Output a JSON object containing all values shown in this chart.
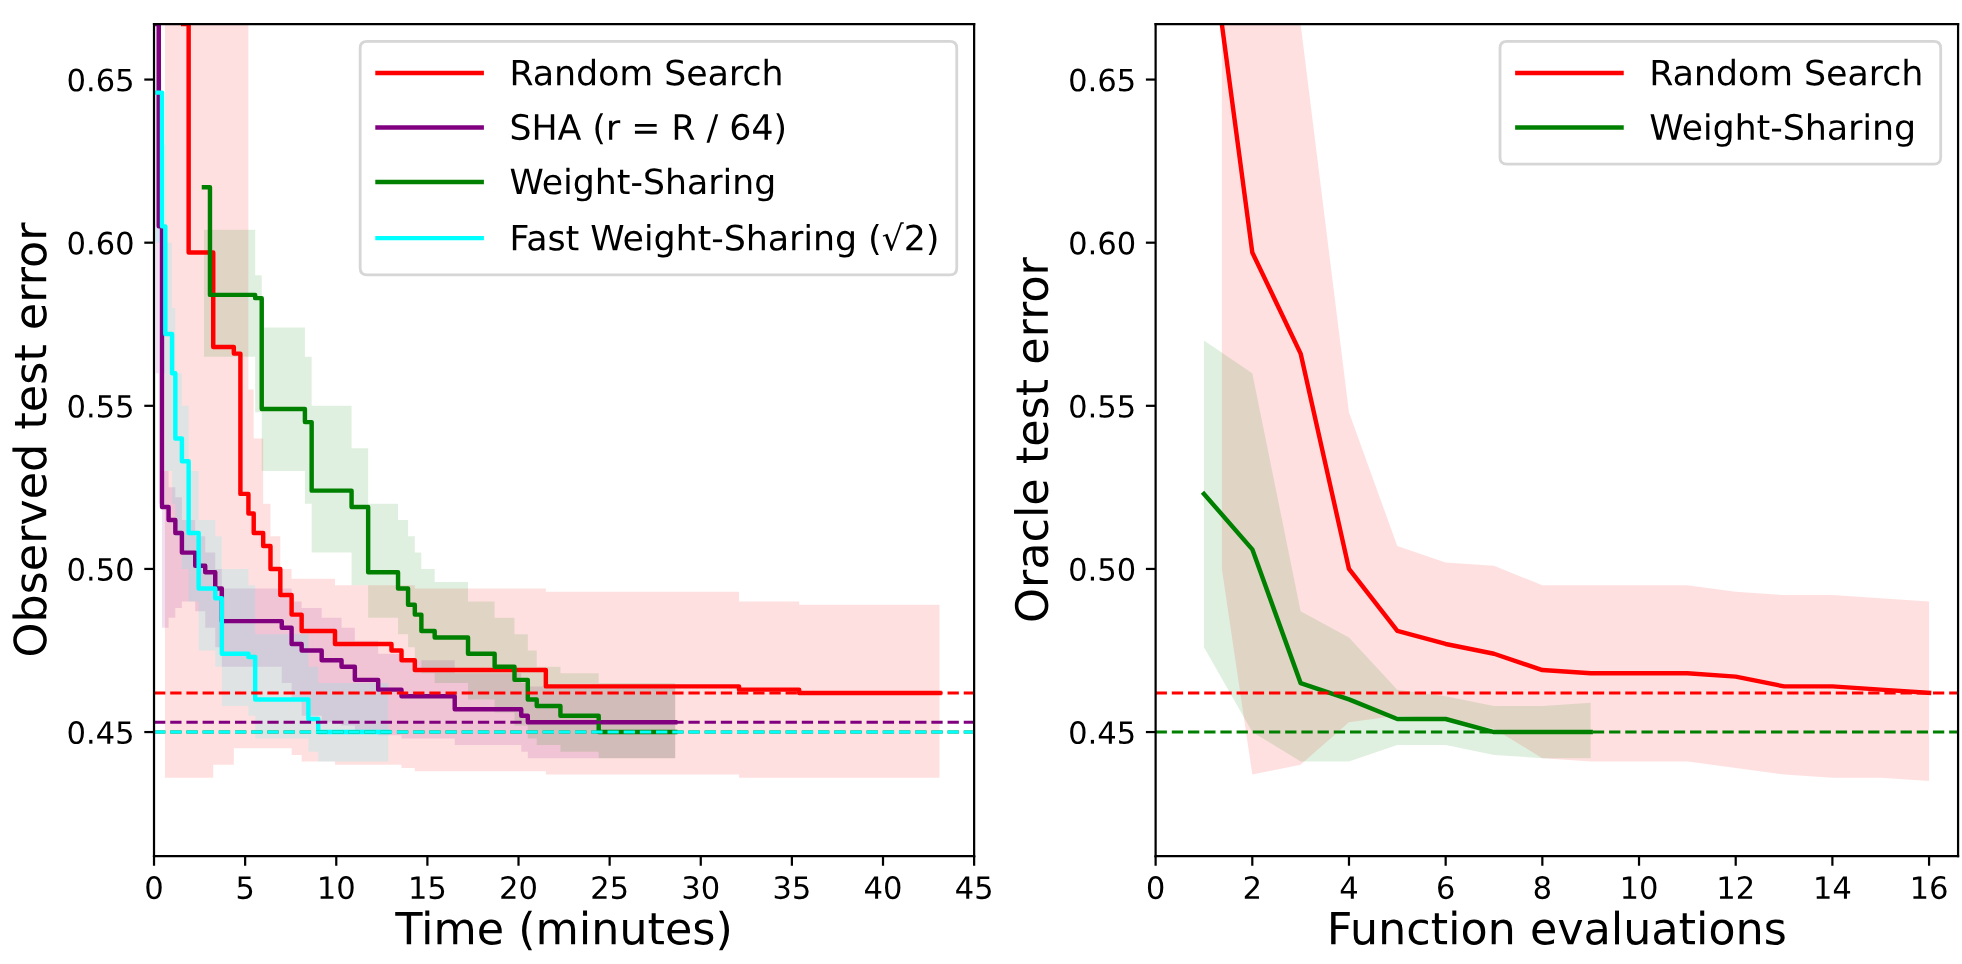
{
  "chart_data": [
    {
      "type": "step",
      "xlabel": "Time (minutes)",
      "ylabel": "Observed test error",
      "xlim": [
        0,
        45
      ],
      "xticks": [
        0,
        5,
        10,
        15,
        20,
        25,
        30,
        35,
        40,
        45
      ],
      "ylim": [
        0.412,
        0.667
      ],
      "yticks": [
        {
          "value": 0.45,
          "label": "0.45"
        },
        {
          "value": 0.5,
          "label": "0.50"
        },
        {
          "value": 0.55,
          "label": "0.55"
        },
        {
          "value": 0.6,
          "label": "0.60"
        },
        {
          "value": 0.65,
          "label": "0.65"
        }
      ],
      "grid": false,
      "legend": "top right",
      "line_style": "solid",
      "series": [
        {
          "name": "Random Search",
          "color": "#ff0000",
          "x": [
            0.6,
            1.6,
            1.9,
            3.25,
            4.38,
            4.74,
            5.18,
            5.47,
            5.99,
            6.39,
            6.93,
            7.55,
            8.1,
            9.93,
            13.03,
            13.58,
            14.31,
            21.5,
            32.1,
            35.4,
            43.1
          ],
          "values": [
            null,
            0.667,
            0.597,
            0.568,
            0.566,
            0.523,
            0.517,
            0.511,
            0.507,
            0.5,
            0.492,
            0.486,
            0.481,
            0.477,
            0.475,
            0.472,
            0.469,
            0.464,
            0.463,
            0.462,
            0.462
          ],
          "upper": [
            0.667,
            0.667,
            0.667,
            0.667,
            0.667,
            0.667,
            0.555,
            0.54,
            0.52,
            0.51,
            0.5,
            0.497,
            0.497,
            0.495,
            0.495,
            0.495,
            0.494,
            0.493,
            0.49,
            0.489,
            0.489
          ],
          "lower": [
            0.436,
            0.436,
            0.436,
            0.44,
            0.445,
            0.445,
            0.445,
            0.445,
            0.445,
            0.445,
            0.445,
            0.443,
            0.441,
            0.44,
            0.44,
            0.439,
            0.438,
            0.437,
            0.436,
            0.436,
            0.436
          ]
        },
        {
          "name": "SHA (r = R / 64)",
          "color": "#800080",
          "x": [
            0.1,
            0.26,
            0.44,
            0.8,
            1.17,
            1.53,
            2.26,
            2.81,
            3.36,
            3.72,
            7.01,
            7.55,
            8.1,
            9.2,
            10.29,
            11.02,
            12.3,
            13.58,
            16.5,
            20.15,
            20.51,
            28.6
          ],
          "values": [
            0.667,
            0.605,
            0.519,
            0.515,
            0.511,
            0.505,
            0.501,
            0.499,
            0.494,
            0.484,
            0.482,
            0.477,
            0.475,
            0.472,
            0.47,
            0.466,
            0.463,
            0.461,
            0.457,
            0.455,
            0.453,
            0.453
          ],
          "upper": [
            0.667,
            0.62,
            0.53,
            0.525,
            0.522,
            0.515,
            0.51,
            0.505,
            0.5,
            0.494,
            0.494,
            0.49,
            0.488,
            0.485,
            0.482,
            0.478,
            0.474,
            0.472,
            0.468,
            0.465,
            0.464,
            0.464
          ],
          "lower": [
            0.56,
            0.52,
            0.482,
            0.485,
            0.488,
            0.49,
            0.487,
            0.482,
            0.476,
            0.47,
            0.465,
            0.46,
            0.455,
            0.453,
            0.452,
            0.45,
            0.449,
            0.448,
            0.446,
            0.444,
            0.442,
            0.442
          ]
        },
        {
          "name": "Weight-Sharing",
          "color": "#008000",
          "x": [
            2.74,
            3.07,
            5.55,
            5.91,
            8.28,
            8.65,
            10.84,
            11.75,
            13.39,
            13.94,
            14.31,
            14.67,
            15.4,
            17.23,
            18.69,
            19.78,
            20.51,
            21.0,
            22.3,
            24.4,
            28.6
          ],
          "values": [
            0.617,
            0.584,
            0.583,
            0.549,
            0.545,
            0.524,
            0.519,
            0.499,
            0.494,
            0.489,
            0.486,
            0.481,
            0.479,
            0.474,
            0.47,
            0.466,
            0.46,
            0.458,
            0.455,
            0.45,
            0.45
          ],
          "upper": [
            0.604,
            0.604,
            0.59,
            0.574,
            0.565,
            0.55,
            0.537,
            0.52,
            0.515,
            0.51,
            0.505,
            0.5,
            0.496,
            0.49,
            0.485,
            0.48,
            0.475,
            0.47,
            0.468,
            0.465,
            0.465
          ],
          "lower": [
            0.565,
            0.565,
            0.548,
            0.53,
            0.52,
            0.505,
            0.495,
            0.485,
            0.48,
            0.476,
            0.472,
            0.468,
            0.465,
            0.46,
            0.456,
            0.452,
            0.448,
            0.446,
            0.444,
            0.442,
            0.442
          ]
        },
        {
          "name": "Fast Weight-Sharing (√2)",
          "color": "#00ffff",
          "x": [
            0.07,
            0.44,
            0.62,
            0.99,
            1.17,
            1.53,
            1.9,
            2.45,
            3.36,
            3.72,
            5.18,
            5.55,
            8.47,
            9.01,
            12.85
          ],
          "values": [
            0.646,
            0.605,
            0.572,
            0.56,
            0.54,
            0.533,
            0.511,
            0.494,
            0.491,
            0.474,
            0.473,
            0.46,
            0.454,
            0.45,
            0.45
          ],
          "upper": [
            0.65,
            0.63,
            0.6,
            0.58,
            0.56,
            0.55,
            0.53,
            0.515,
            0.51,
            0.5,
            0.495,
            0.48,
            0.47,
            0.465,
            0.462
          ],
          "lower": [
            0.6,
            0.56,
            0.53,
            0.52,
            0.51,
            0.5,
            0.49,
            0.475,
            0.47,
            0.458,
            0.455,
            0.448,
            0.444,
            0.441,
            0.441
          ]
        }
      ],
      "ref_lines": [
        {
          "axis": "y",
          "value": 0.462,
          "color": "#ff0000",
          "line_style": "dashed"
        },
        {
          "axis": "y",
          "value": 0.453,
          "color": "#800080",
          "line_style": "dashed"
        },
        {
          "axis": "y",
          "value": 0.45,
          "color": "#008000",
          "line_style": "dashed"
        },
        {
          "axis": "y",
          "value": 0.45,
          "color": "#00ffff",
          "line_style": "dashed"
        }
      ]
    },
    {
      "type": "line",
      "xlabel": "Function evaluations",
      "ylabel": "Oracle test error",
      "xlim": [
        0,
        16.6
      ],
      "xticks": [
        0,
        2,
        4,
        6,
        8,
        10,
        12,
        14,
        16
      ],
      "ylim": [
        0.412,
        0.667
      ],
      "yticks": [
        {
          "value": 0.45,
          "label": "0.45"
        },
        {
          "value": 0.5,
          "label": "0.50"
        },
        {
          "value": 0.55,
          "label": "0.55"
        },
        {
          "value": 0.6,
          "label": "0.60"
        },
        {
          "value": 0.65,
          "label": "0.65"
        }
      ],
      "grid": false,
      "legend": "top right",
      "line_style": "solid",
      "series": [
        {
          "name": "Random Search",
          "color": "#ff0000",
          "x": [
            1.37,
            2,
            3,
            4,
            5,
            6,
            7,
            8,
            9,
            10,
            11,
            12,
            13,
            14,
            15,
            16
          ],
          "values": [
            0.667,
            0.597,
            0.566,
            0.5,
            0.481,
            0.477,
            0.474,
            0.469,
            0.468,
            0.468,
            0.468,
            0.467,
            0.464,
            0.464,
            0.463,
            0.462
          ],
          "upper": [
            0.667,
            0.667,
            0.667,
            0.548,
            0.507,
            0.502,
            0.501,
            0.495,
            0.495,
            0.495,
            0.495,
            0.493,
            0.492,
            0.492,
            0.491,
            0.49
          ],
          "lower": [
            0.5,
            0.437,
            0.44,
            0.453,
            0.455,
            0.454,
            0.451,
            0.442,
            0.441,
            0.441,
            0.441,
            0.439,
            0.437,
            0.436,
            0.436,
            0.435
          ]
        },
        {
          "name": "Weight-Sharing",
          "color": "#008000",
          "x": [
            1,
            2,
            3,
            4,
            5,
            6,
            7,
            8,
            9
          ],
          "values": [
            0.523,
            0.506,
            0.465,
            0.46,
            0.454,
            0.454,
            0.45,
            0.45,
            0.45
          ],
          "upper": [
            0.57,
            0.56,
            0.487,
            0.479,
            0.463,
            0.461,
            0.458,
            0.458,
            0.459
          ],
          "lower": [
            0.476,
            0.45,
            0.441,
            0.441,
            0.446,
            0.446,
            0.443,
            0.442,
            0.442
          ]
        }
      ],
      "ref_lines": [
        {
          "axis": "y",
          "value": 0.462,
          "color": "#ff0000",
          "line_style": "dashed"
        },
        {
          "axis": "y",
          "value": 0.45,
          "color": "#008000",
          "line_style": "dashed"
        }
      ]
    }
  ]
}
